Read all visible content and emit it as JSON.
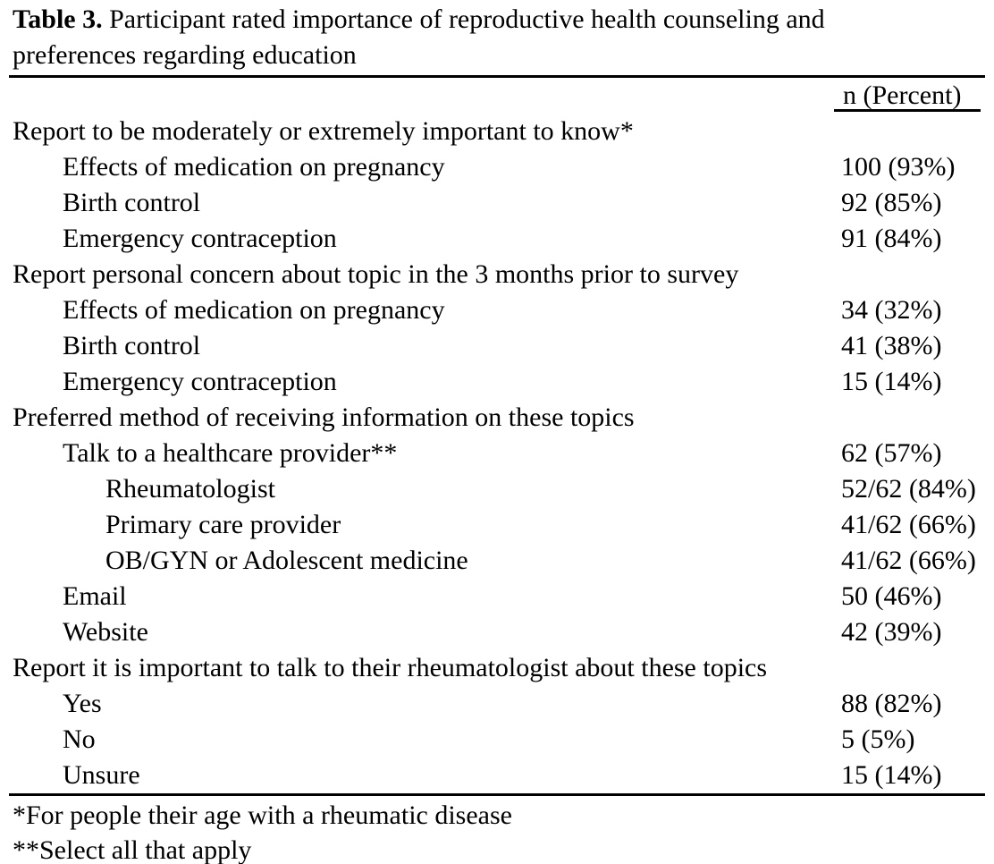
{
  "table": {
    "title": {
      "label": "Table 3.",
      "line1": " Participant rated importance of reproductive health counseling and",
      "line2": "preferences regarding education"
    },
    "value_header": "n (Percent)",
    "rows": [
      {
        "label": "Report to be moderately or extremely important to know*",
        "value": "",
        "indent": 0
      },
      {
        "label": "Effects of medication on pregnancy",
        "value": "100 (93%)",
        "indent": 1
      },
      {
        "label": "Birth control",
        "value": "92 (85%)",
        "indent": 1
      },
      {
        "label": "Emergency contraception",
        "value": "91 (84%)",
        "indent": 1
      },
      {
        "label": "Report personal concern about topic in the 3 months prior to survey",
        "value": "",
        "indent": 0
      },
      {
        "label": "Effects of medication on pregnancy",
        "value": "34 (32%)",
        "indent": 1
      },
      {
        "label": "Birth control",
        "value": "41 (38%)",
        "indent": 1
      },
      {
        "label": "Emergency contraception",
        "value": "15 (14%)",
        "indent": 1
      },
      {
        "label": "Preferred method of receiving information on these topics",
        "value": "",
        "indent": 0
      },
      {
        "label": "Talk to a healthcare provider**",
        "value": "62 (57%)",
        "indent": 1
      },
      {
        "label": "Rheumatologist",
        "value": "52/62 (84%)",
        "indent": 2
      },
      {
        "label": "Primary care provider",
        "value": "41/62 (66%)",
        "indent": 2
      },
      {
        "label": "OB/GYN or Adolescent medicine",
        "value": "41/62 (66%)",
        "indent": 2
      },
      {
        "label": "Email",
        "value": "50 (46%)",
        "indent": 1
      },
      {
        "label": "Website",
        "value": "42 (39%)",
        "indent": 1
      },
      {
        "label": "Report it is important to talk to their rheumatologist about these topics",
        "value": "",
        "indent": 0
      },
      {
        "label": "Yes",
        "value": "88 (82%)",
        "indent": 1
      },
      {
        "label": "No",
        "value": "5 (5%)",
        "indent": 1
      },
      {
        "label": "Unsure",
        "value": "15 (14%)",
        "indent": 1
      }
    ],
    "footnotes": [
      "*For people their age with a rheumatic disease",
      "**Select all that apply"
    ],
    "colors": {
      "text": "#000000",
      "background": "#ffffff",
      "rule": "#000000"
    }
  }
}
